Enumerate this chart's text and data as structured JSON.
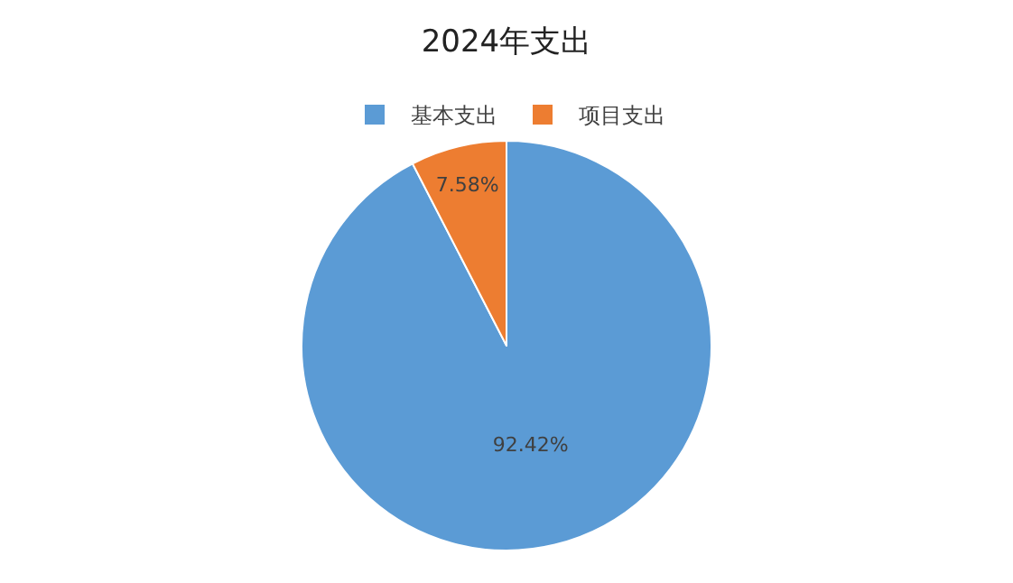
{
  "chart_data": {
    "type": "pie",
    "title": "2024年支出",
    "categories": [
      "基本支出",
      "项目支出"
    ],
    "values": [
      92.42,
      7.58
    ],
    "colors": [
      "#5b9bd5",
      "#ed7d31"
    ],
    "value_labels": [
      "92.42%",
      "7.58%"
    ],
    "legend": "top"
  }
}
